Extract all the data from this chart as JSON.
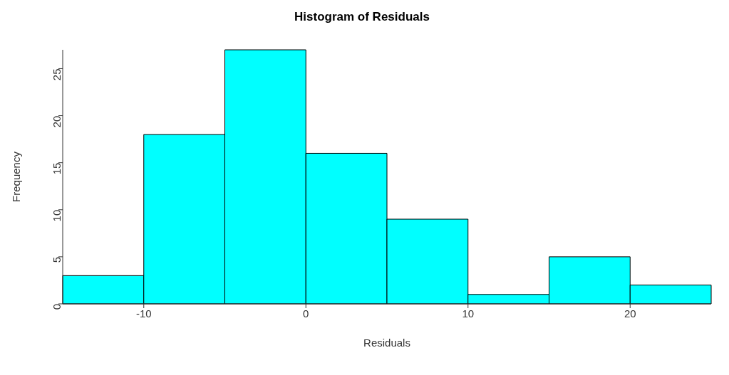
{
  "chart_data": {
    "type": "histogram",
    "title": "Histogram of Residuals",
    "xlabel": "Residuals",
    "ylabel": "Frequency",
    "bins": [
      -15,
      -10,
      -5,
      0,
      5,
      10,
      15,
      20,
      25
    ],
    "values": [
      3,
      18,
      27,
      16,
      9,
      1,
      5,
      2
    ],
    "color": "#00ffff",
    "xlim": [
      -15,
      25
    ],
    "xticks": [
      -10,
      0,
      10,
      20
    ],
    "ylim": [
      0,
      27
    ],
    "yticks": [
      0,
      5,
      10,
      15,
      20,
      25
    ],
    "grid": false
  }
}
